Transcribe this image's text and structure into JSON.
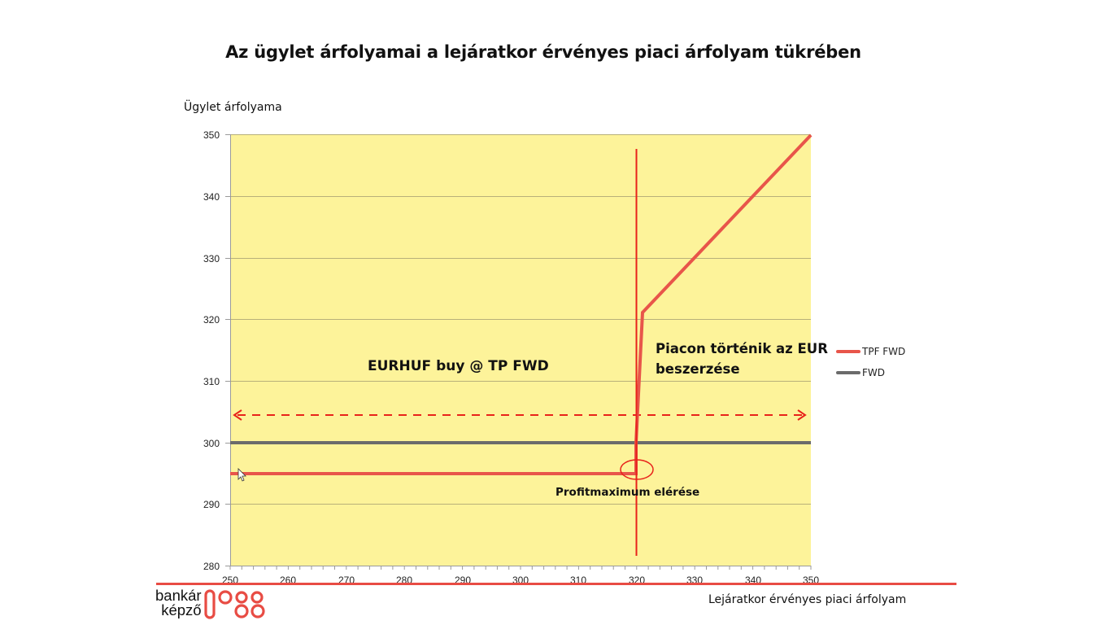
{
  "slide": {
    "title": "Az ügylet árfolyamai a lejáratkor érvényes piaci árfolyam tükrében"
  },
  "axes": {
    "y_label": "Ügylet árfolyama",
    "x_label": "Lejáratkor érvényes piaci árfolyam"
  },
  "annotations": {
    "buy": "EURHUF buy @ TP FWD",
    "market_line1": "Piacon történik az EUR",
    "market_line2": "beszerzése",
    "profit": "Profitmaximum elérése"
  },
  "legend": {
    "items": [
      {
        "label": "TPF FWD",
        "color": "#e8554a"
      },
      {
        "label": "FWD",
        "color": "#6b6b6b"
      }
    ]
  },
  "footer": {
    "logo_line1": "bankár",
    "logo_line2": "képző",
    "accent_color": "#e84c44"
  },
  "colors": {
    "plot_bg": "#fdf39a",
    "grid": "#b8b07a",
    "tpf": "#e8554a",
    "fwd": "#6b6b6b",
    "marker": "#e8231b"
  },
  "chart_data": {
    "type": "line",
    "title": "Az ügylet árfolyamai a lejáratkor érvényes piaci árfolyam tükrében",
    "xlabel": "Lejáratkor érvényes piaci árfolyam",
    "ylabel": "Ügylet árfolyama",
    "xlim": [
      250,
      350
    ],
    "ylim": [
      280,
      350
    ],
    "x_ticks": [
      250,
      260,
      270,
      280,
      290,
      300,
      310,
      320,
      330,
      340,
      350
    ],
    "y_ticks": [
      280,
      290,
      300,
      310,
      320,
      330,
      340,
      350
    ],
    "grid": "horizontal",
    "legend_position": "right",
    "series": [
      {
        "name": "TPF FWD",
        "points": [
          [
            250,
            295
          ],
          [
            320,
            295
          ],
          [
            320,
            300
          ],
          [
            321,
            321
          ],
          [
            350,
            350
          ]
        ]
      },
      {
        "name": "FWD",
        "points": [
          [
            250,
            300
          ],
          [
            350,
            300
          ]
        ]
      }
    ],
    "annotations": [
      {
        "text": "EURHUF buy @ TP FWD",
        "x": 275,
        "y": 312
      },
      {
        "text": "Piacon történik az EUR beszerzése",
        "x": 323,
        "y": 314
      },
      {
        "text": "Profitmaximum elérése",
        "x": 313,
        "y": 292
      },
      {
        "type": "vertical_line",
        "x": 320,
        "y_from": 282,
        "y_to": 348
      },
      {
        "type": "double_arrow_dashed",
        "y": 304.5,
        "x_from": 250,
        "x_to": 350
      },
      {
        "type": "ellipse",
        "x": 320,
        "y": 295.5
      }
    ]
  }
}
